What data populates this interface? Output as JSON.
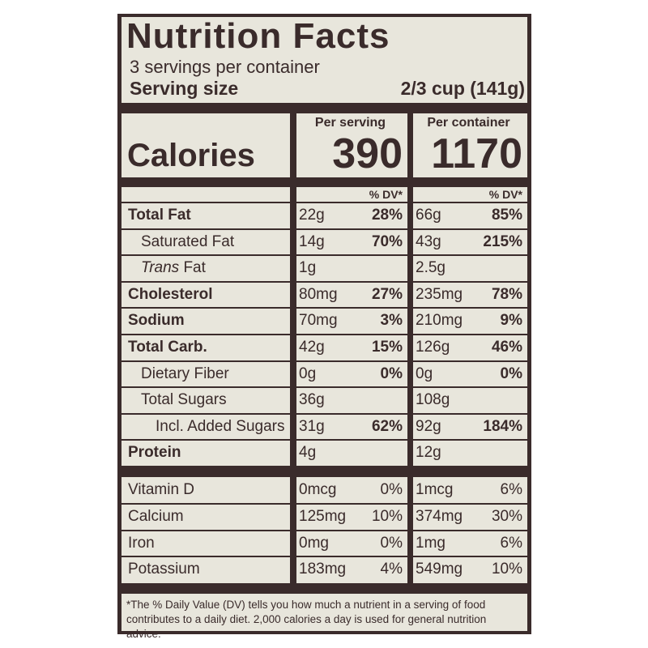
{
  "title": "Nutrition Facts",
  "servings": "3 servings per container",
  "serving_size_label": "Serving size",
  "serving_size": "2/3 cup (141g)",
  "columns": [
    "Per serving",
    "Per container"
  ],
  "calories_label": "Calories",
  "calories": [
    "390",
    "1170"
  ],
  "dv_headers": [
    "% DV*",
    "% DV*"
  ],
  "nutrients": [
    {
      "label": "Total Fat",
      "style": "bold",
      "values": [
        [
          "22g",
          "28%"
        ],
        [
          "66g",
          "85%"
        ]
      ]
    },
    {
      "label": "Saturated Fat",
      "style": "sub",
      "values": [
        [
          "14g",
          "70%"
        ],
        [
          "43g",
          "215%"
        ]
      ]
    },
    {
      "italic": "Trans",
      "label": "Fat",
      "style": "sub",
      "values": [
        [
          "1g"
        ],
        [
          "2.5g"
        ]
      ]
    },
    {
      "label": "Cholesterol",
      "style": "bold",
      "values": [
        [
          "80mg",
          "27%"
        ],
        [
          "235mg",
          "78%"
        ]
      ]
    },
    {
      "label": "Sodium",
      "style": "bold",
      "values": [
        [
          "70mg",
          "3%"
        ],
        [
          "210mg",
          "9%"
        ]
      ]
    },
    {
      "label": "Total Carb.",
      "style": "bold",
      "values": [
        [
          "42g",
          "15%"
        ],
        [
          "126g",
          "46%"
        ]
      ]
    },
    {
      "label": "Dietary Fiber",
      "style": "sub",
      "values": [
        [
          "0g",
          "0%"
        ],
        [
          "0g",
          "0%"
        ]
      ]
    },
    {
      "label": "Total Sugars",
      "style": "sub",
      "values": [
        [
          "36g"
        ],
        [
          "108g"
        ]
      ]
    },
    {
      "label": "Incl. Added Sugars",
      "style": "sub2",
      "values": [
        [
          "31g",
          "62%"
        ],
        [
          "92g",
          "184%"
        ]
      ]
    },
    {
      "label": "Protein",
      "style": "bold",
      "values": [
        [
          "4g"
        ],
        [
          "12g"
        ]
      ]
    }
  ],
  "vitamins": [
    {
      "label": "Vitamin D",
      "style": "plain",
      "values": [
        [
          "0mcg",
          "0%"
        ],
        [
          "1mcg",
          "6%"
        ]
      ]
    },
    {
      "label": "Calcium",
      "style": "plain",
      "values": [
        [
          "125mg",
          "10%"
        ],
        [
          "374mg",
          "30%"
        ]
      ]
    },
    {
      "label": "Iron",
      "style": "plain",
      "values": [
        [
          "0mg",
          "0%"
        ],
        [
          "1mg",
          "6%"
        ]
      ]
    },
    {
      "label": "Potassium",
      "style": "plain",
      "values": [
        [
          "183mg",
          "4%"
        ],
        [
          "549mg",
          "10%"
        ]
      ]
    }
  ],
  "footnote": "*The % Daily Value (DV) tells you how much a nutrient in a serving of food contributes to a daily diet. 2,000 calories a day is used for general nutrition advice."
}
